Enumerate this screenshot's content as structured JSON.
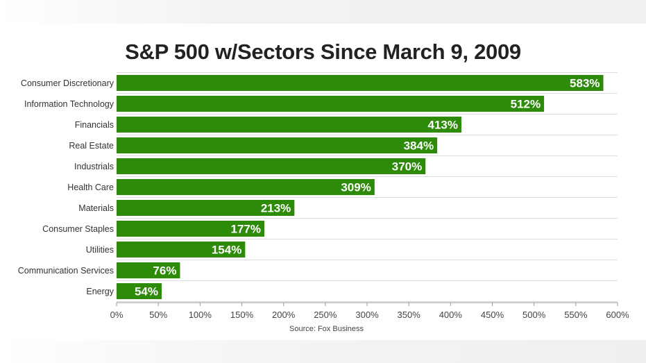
{
  "colors": {
    "bar": "#2e8b0a",
    "grid": "#dddddd",
    "axis": "#999999"
  },
  "chart_data": {
    "type": "bar",
    "orientation": "horizontal",
    "title": "S&P 500 w/Sectors Since March 9, 2009",
    "source": "Source: Fox Business",
    "categories": [
      "Consumer Discretionary",
      "Information Technology",
      "Financials",
      "Real Estate",
      "Industrials",
      "Health Care",
      "Materials",
      "Consumer Staples",
      "Utilities",
      "Communication Services",
      "Energy"
    ],
    "values": [
      583,
      512,
      413,
      384,
      370,
      309,
      213,
      177,
      154,
      76,
      54
    ],
    "value_labels": [
      "583%",
      "512%",
      "413%",
      "384%",
      "370%",
      "309%",
      "213%",
      "177%",
      "154%",
      "76%",
      "54%"
    ],
    "xlim": [
      0,
      600
    ],
    "xticks": [
      0,
      50,
      100,
      150,
      200,
      250,
      300,
      350,
      400,
      450,
      500,
      550,
      600
    ],
    "xtick_labels": [
      "0%",
      "50%",
      "100%",
      "150%",
      "200%",
      "250%",
      "300%",
      "350%",
      "400%",
      "450%",
      "500%",
      "550%",
      "600%"
    ],
    "xlabel": "",
    "ylabel": "",
    "grid": true,
    "legend": false
  }
}
